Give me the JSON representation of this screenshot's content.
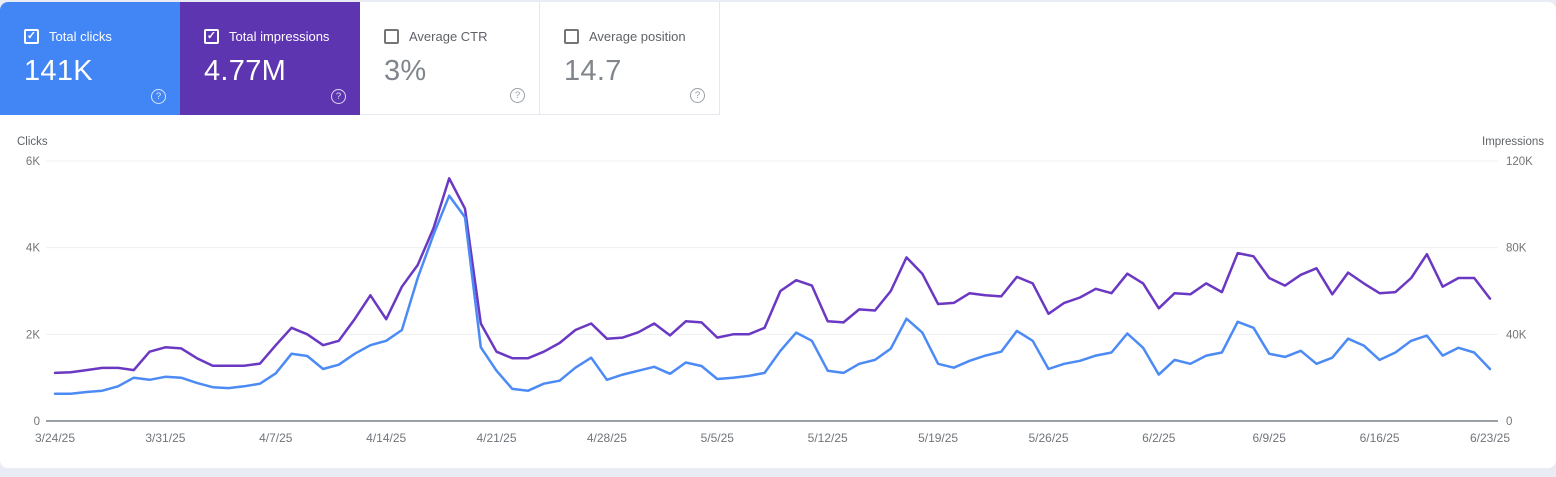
{
  "icons": {
    "help_glyph": "?",
    "check_glyph": "✓"
  },
  "cards": [
    {
      "label": "Total clicks",
      "value": "141K",
      "selected": true,
      "bg": "#4285f4"
    },
    {
      "label": "Total impressions",
      "value": "4.77M",
      "selected": true,
      "bg": "#5e35b1"
    },
    {
      "label": "Average CTR",
      "value": "3%",
      "selected": false,
      "bg": "#ffffff"
    },
    {
      "label": "Average position",
      "value": "14.7",
      "selected": false,
      "bg": "#ffffff"
    }
  ],
  "chart_data": {
    "type": "line",
    "grid": true,
    "left_axis": {
      "title": "Clicks",
      "ticks": [
        "6K",
        "4K",
        "2K",
        "0"
      ],
      "max": 6000
    },
    "right_axis": {
      "title": "Impressions",
      "ticks": [
        "120K",
        "80K",
        "40K",
        "0"
      ],
      "max": 120000
    },
    "x_tick_labels": [
      "3/24/25",
      "3/31/25",
      "4/7/25",
      "4/14/25",
      "4/21/25",
      "4/28/25",
      "5/5/25",
      "5/12/25",
      "5/19/25",
      "5/26/25",
      "6/2/25",
      "6/9/25",
      "6/16/25",
      "6/23/25"
    ],
    "x_tick_interval_days": 7,
    "series": [
      {
        "name": "Total clicks",
        "axis": "left",
        "color": "#4c8bf5",
        "values": [
          630,
          630,
          670,
          700,
          800,
          1000,
          950,
          1020,
          1000,
          880,
          780,
          760,
          800,
          860,
          1100,
          1550,
          1500,
          1200,
          1300,
          1550,
          1750,
          1850,
          2100,
          3300,
          4300,
          5200,
          4700,
          1700,
          1160,
          740,
          700,
          860,
          930,
          1230,
          1460,
          950,
          1070,
          1160,
          1250,
          1090,
          1350,
          1270,
          970,
          1000,
          1040,
          1110,
          1620,
          2040,
          1850,
          1160,
          1110,
          1320,
          1410,
          1670,
          2360,
          2040,
          1320,
          1230,
          1390,
          1510,
          1600,
          2080,
          1850,
          1200,
          1320,
          1390,
          1510,
          1580,
          2020,
          1690,
          1070,
          1410,
          1320,
          1510,
          1580,
          2290,
          2150,
          1550,
          1480,
          1620,
          1320,
          1460,
          1900,
          1740,
          1410,
          1580,
          1850,
          1970,
          1510,
          1690,
          1580,
          1200
        ]
      },
      {
        "name": "Total impressions",
        "axis": "right",
        "color": "#6a38c2",
        "values": [
          22200,
          22500,
          23500,
          24500,
          24500,
          23500,
          32000,
          34000,
          33500,
          29000,
          25500,
          25500,
          25500,
          26500,
          35000,
          43000,
          40000,
          35000,
          37000,
          47000,
          58000,
          47000,
          62000,
          72000,
          89000,
          112000,
          98000,
          45000,
          32000,
          29000,
          29000,
          32000,
          36000,
          42000,
          45000,
          38000,
          38500,
          41000,
          45000,
          39500,
          46000,
          45500,
          38500,
          40000,
          40000,
          43000,
          60000,
          65000,
          62500,
          46000,
          45500,
          51500,
          51000,
          60000,
          75500,
          68000,
          54000,
          54500,
          59000,
          58000,
          57500,
          66500,
          63500,
          49500,
          54500,
          57000,
          61000,
          59000,
          68000,
          63500,
          52000,
          59000,
          58500,
          63500,
          59500,
          77500,
          76000,
          66000,
          62500,
          67500,
          70500,
          58500,
          68500,
          63500,
          59000,
          59500,
          66000,
          77000,
          62000,
          66000,
          66000,
          56500
        ]
      }
    ]
  }
}
